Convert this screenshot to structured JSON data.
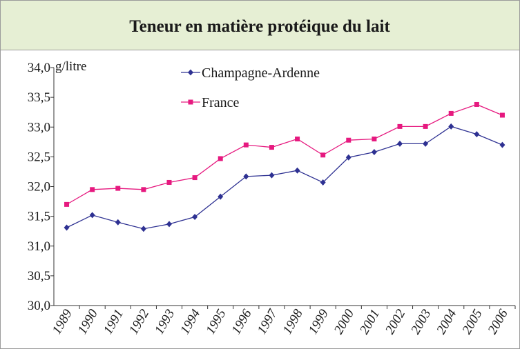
{
  "chart_data": {
    "type": "line",
    "title": "Teneur en matière protéique du lait",
    "y_label": "g/litre",
    "categories": [
      "1989",
      "1990",
      "1991",
      "1992",
      "1993",
      "1994",
      "1995",
      "1996",
      "1997",
      "1998",
      "1999",
      "2000",
      "2001",
      "2002",
      "2003",
      "2004",
      "2005",
      "2006"
    ],
    "series": [
      {
        "name": "Champagne-Ardenne",
        "color": "#2e3192",
        "marker": "diamond",
        "values": [
          31.31,
          31.52,
          31.4,
          31.29,
          31.37,
          31.49,
          31.83,
          32.17,
          32.19,
          32.27,
          32.07,
          32.49,
          32.58,
          32.72,
          32.72,
          33.01,
          32.88,
          32.7
        ]
      },
      {
        "name": "France",
        "color": "#e6197f",
        "marker": "square",
        "values": [
          31.7,
          31.95,
          31.97,
          31.95,
          32.07,
          32.15,
          32.47,
          32.7,
          32.66,
          32.8,
          32.53,
          32.78,
          32.8,
          33.01,
          33.01,
          33.23,
          33.38,
          33.2
        ]
      }
    ],
    "ylim": [
      30,
      34
    ],
    "yticks": [
      {
        "value": 30,
        "label": "30,0"
      },
      {
        "value": 30.5,
        "label": "30,5"
      },
      {
        "value": 31,
        "label": "31,0"
      },
      {
        "value": 31.5,
        "label": "31,5"
      },
      {
        "value": 32,
        "label": "32,0"
      },
      {
        "value": 32.5,
        "label": "32,5"
      },
      {
        "value": 33,
        "label": "33,0"
      },
      {
        "value": 33.5,
        "label": "33,5"
      },
      {
        "value": 34,
        "label": "34,0"
      }
    ],
    "grid": false,
    "legend": "top"
  }
}
